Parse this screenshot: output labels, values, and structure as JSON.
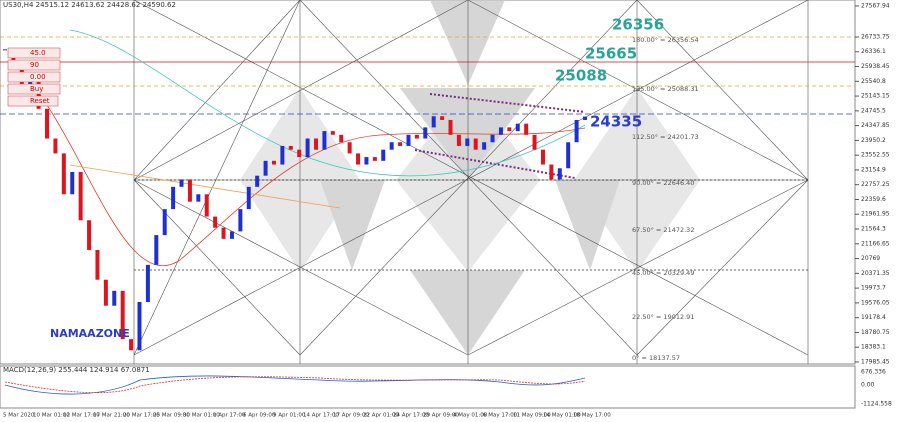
{
  "header": "US30,H4 24515.12 24613.62 24428.62 24590.62",
  "buttons": [
    "45.0",
    "90",
    "0.00",
    "Buy",
    "Reset"
  ],
  "brand": "NAMAAZONE",
  "targets": [
    "26356",
    "25665",
    "25088",
    "24335"
  ],
  "gann_levels": [
    "180.00° = 26356.54",
    "135.00° = 25088.31",
    "112.50° = 24201.73",
    "90.00° = 22646.40",
    "67.50° = 21472.32",
    "45.00° = 20329.49",
    "22.50° = 19012.91",
    "0° = 18137.57"
  ],
  "chart_data": {
    "type": "candlestick",
    "values": [
      26400,
      25900,
      25300,
      25600,
      24800,
      24000,
      23600,
      22500,
      23100,
      21800,
      21000,
      20200,
      19500,
      19900,
      18600,
      18300,
      19600,
      20600,
      21400,
      22100,
      22700,
      22900,
      22300,
      22500,
      21900,
      21600,
      21300,
      21500,
      22100,
      22700,
      23000,
      23400,
      23300,
      23800,
      23700,
      23500,
      24000,
      23700,
      24200,
      24100,
      23900,
      23600,
      23300,
      23500,
      23400,
      23700,
      23900,
      23800,
      24100,
      24000,
      24300,
      24600,
      24500,
      24100,
      23800,
      24000,
      23700,
      23900,
      24100,
      24300,
      24200,
      24400,
      24100,
      23700,
      23300,
      22900,
      23200,
      23900,
      24500,
      24590
    ],
    "up_color": "#1f2fd6",
    "down_color": "#e0141e",
    "ylim": [
      17931,
      27729
    ],
    "yticks": [
      17985.45,
      18383.1,
      18780.75,
      19178.4,
      19576.05,
      19973.7,
      20371.35,
      20769,
      21166.65,
      21564.3,
      21961.95,
      22359.6,
      22757.25,
      23154.9,
      23552.55,
      23950.2,
      24347.85,
      24745.5,
      25143.15,
      25540.8,
      25938.45,
      26336.1,
      26733.75,
      27567.94
    ],
    "x_labels": [
      "5 Mar 2020",
      "10 Mar 01:00",
      "12 Mar 17:00",
      "17 Mar 21:00",
      "20 Mar 17:00",
      "25 Mar 09:00",
      "30 Mar 01:00",
      "1 Apr 17:00",
      "6 Apr 09:00",
      "9 Apr 01:00",
      "14 Apr 17:00",
      "17 Apr 09:00",
      "22 Apr 01:00",
      "24 Apr 17:00",
      "29 Apr 09:00",
      "4 May 01:00",
      "6 May 17:00",
      "11 May 09:00",
      "14 May 01:00",
      "18 May 17:00"
    ],
    "macd_label": "MACD(12,26,9) 255.444 124.914 67.0871",
    "macd_ticks": [
      "676.336",
      "0.00",
      "-1124.558"
    ]
  }
}
